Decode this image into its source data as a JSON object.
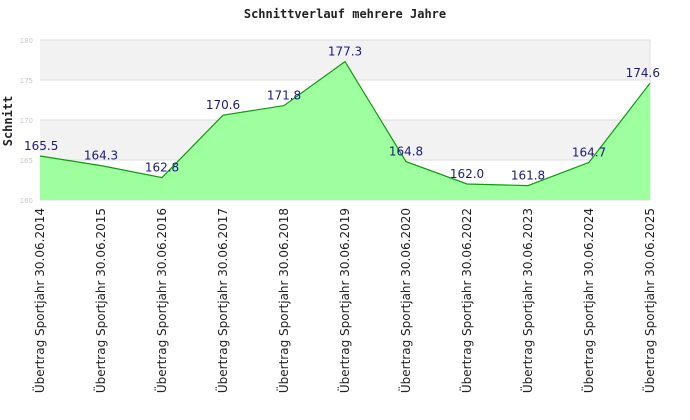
{
  "chart_data": {
    "type": "area",
    "title": "Schnittverlauf mehrere Jahre",
    "xlabel": "",
    "ylabel": "Schnitt",
    "ylim": [
      160,
      180
    ],
    "yticks": [
      160,
      165,
      170,
      175,
      180
    ],
    "grid": true,
    "legend": "none",
    "categories": [
      "Übertrag Sportjahr 30.06.2014",
      "Übertrag Sportjahr 30.06.2015",
      "Übertrag Sportjahr 30.06.2016",
      "Übertrag Sportjahr 30.06.2017",
      "Übertrag Sportjahr 30.06.2018",
      "Übertrag Sportjahr 30.06.2019",
      "Übertrag Sportjahr 30.06.2020",
      "Übertrag Sportjahr 30.06.2022",
      "Übertrag Sportjahr 30.06.2023",
      "Übertrag Sportjahr 30.06.2024",
      "Übertrag Sportjahr 30.06.2025"
    ],
    "values": [
      165.5,
      164.3,
      162.8,
      170.6,
      171.8,
      177.3,
      164.8,
      162.0,
      161.8,
      164.7,
      174.6
    ],
    "data_labels": [
      "165.5",
      "164.3",
      "162.8",
      "170.6",
      "171.8",
      "177.3",
      "164.8",
      "162.0",
      "161.8",
      "164.7",
      "174.6"
    ],
    "colors": {
      "fill": "#99ff99",
      "line": "#119911",
      "band_alt": "#f2f2f2",
      "band": "#ffffff",
      "grid": "#dddddd",
      "data_label": "#1a1a80"
    }
  }
}
